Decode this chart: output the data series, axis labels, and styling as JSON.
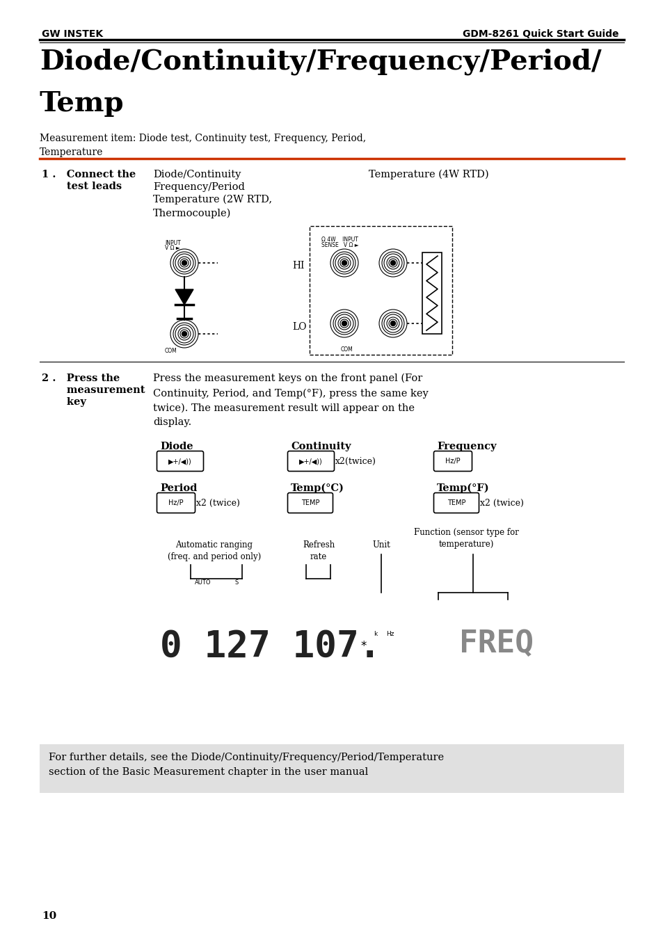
{
  "page_bg": "#ffffff",
  "header_logo": "GW INSTEK",
  "header_title": "GDM-8261 Quick Start Guide",
  "main_title_line1": "Diode/Continuity/Frequency/Period/",
  "main_title_line2": "Temp",
  "measurement_item_text": "Measurement item: Diode test, Continuity test, Frequency, Period,\nTemperature",
  "red_line_color": "#cc3300",
  "section1_col1_line1": "Diode/Continuity",
  "section1_col1_line2": "Frequency/Period",
  "section1_col1_line3": "Temperature (2W RTD,\nThermocouple)",
  "section1_col2_line1": "Temperature (4W RTD)",
  "section2_text": "Press the measurement keys on the front panel (For\nContinuity, Period, and Temp(°F), press the same key\ntwice). The measurement result will appear on the\ndisplay.",
  "footer_text": "For further details, see the Diode/Continuity/Frequency/Period/Temperature\nsection of the Basic Measurement chapter in the user manual",
  "footer_bg": "#e0e0e0",
  "page_number": "10",
  "auto_range_label": "Automatic ranging\n(freq. and period only)",
  "refresh_rate_label": "Refresh\nrate",
  "unit_label": "Unit",
  "function_label": "Function (sensor type for\ntemperature)"
}
